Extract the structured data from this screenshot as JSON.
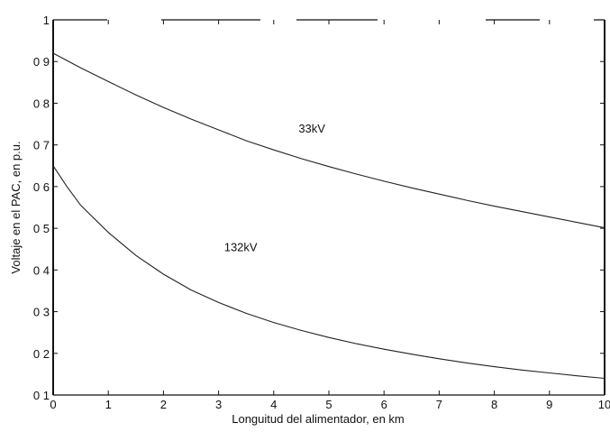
{
  "chart_data": {
    "type": "line",
    "title": "",
    "xlabel": "Longuitud del alimentador, en km",
    "ylabel": "Voltaje en el PAC, en p.u.",
    "xlim": [
      0,
      10
    ],
    "ylim": [
      0.1,
      1.0
    ],
    "x_ticks": [
      "0",
      "1",
      "2",
      "3",
      "4",
      "5",
      "6",
      "7",
      "8",
      "9",
      "10"
    ],
    "y_ticks": [
      "0 1",
      "0 2",
      "0 3",
      "0 4",
      "0 5",
      "0 6",
      "0 7",
      "0 8",
      "0 9",
      "1"
    ],
    "grid": false,
    "legend": "none",
    "series": [
      {
        "name": "33kV",
        "x": [
          0,
          0.5,
          1,
          1.5,
          2,
          2.5,
          3,
          3.5,
          4,
          4.5,
          5,
          5.5,
          6,
          6.5,
          7,
          7.5,
          8,
          8.5,
          9,
          9.5,
          10
        ],
        "y": [
          0.92,
          0.885,
          0.852,
          0.82,
          0.79,
          0.762,
          0.736,
          0.71,
          0.688,
          0.667,
          0.648,
          0.63,
          0.613,
          0.597,
          0.582,
          0.567,
          0.553,
          0.54,
          0.527,
          0.514,
          0.501
        ]
      },
      {
        "name": "132kV",
        "x": [
          0,
          0.25,
          0.5,
          1,
          1.5,
          2,
          2.5,
          3,
          3.5,
          4,
          4.5,
          5,
          5.5,
          6,
          6.5,
          7,
          7.5,
          8,
          8.5,
          9,
          9.5,
          10
        ],
        "y": [
          0.65,
          0.6,
          0.555,
          0.49,
          0.435,
          0.39,
          0.352,
          0.322,
          0.296,
          0.274,
          0.255,
          0.238,
          0.223,
          0.21,
          0.198,
          0.187,
          0.177,
          0.168,
          0.16,
          0.153,
          0.146,
          0.14
        ]
      }
    ],
    "annotations": [
      {
        "text": "33kV",
        "x": 4.45,
        "y": 0.73
      },
      {
        "text": "132kV",
        "x": 3.1,
        "y": 0.445
      }
    ],
    "colors": {
      "line": "#222222",
      "axis": "#111111"
    }
  }
}
